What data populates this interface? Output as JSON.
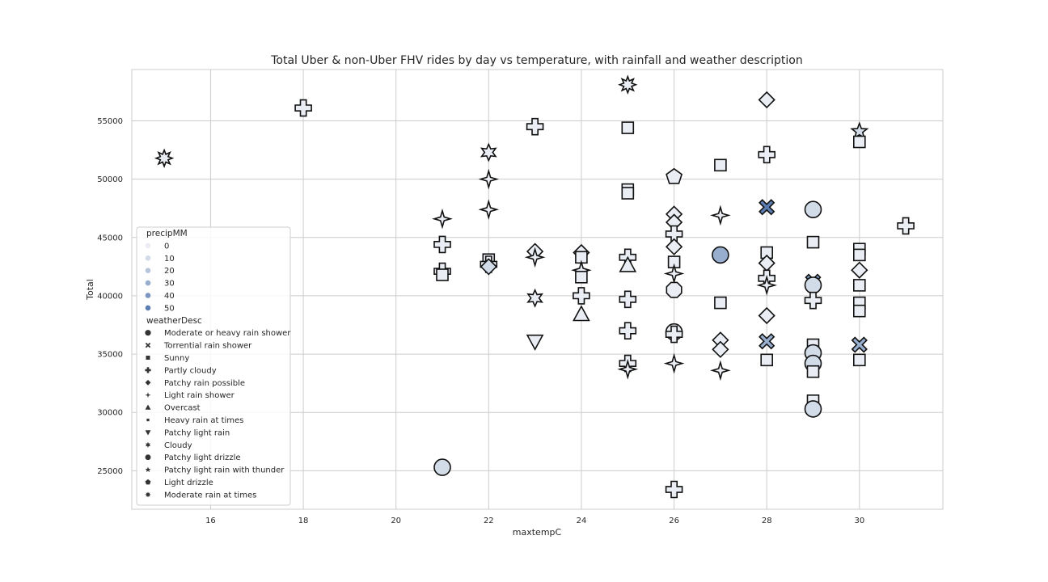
{
  "chart_data": {
    "type": "scatter",
    "title": "Total Uber & non-Uber FHV rides by day vs temperature, with rainfall and weather description",
    "xlabel": "maxtempC",
    "ylabel": "Total",
    "xlim": [
      14.3,
      31.8
    ],
    "ylim": [
      21700,
      59400
    ],
    "xticks": [
      16,
      18,
      20,
      22,
      24,
      26,
      28,
      30
    ],
    "yticks": [
      25000,
      30000,
      35000,
      40000,
      45000,
      50000,
      55000
    ],
    "grid": true,
    "legend_position": "lower-left",
    "hue_title": "precipMM",
    "hue_levels": [
      {
        "label": "0",
        "color": "#eaeef4"
      },
      {
        "label": "10",
        "color": "#d2dbe8"
      },
      {
        "label": "20",
        "color": "#b6c4dc"
      },
      {
        "label": "30",
        "color": "#98aecf"
      },
      {
        "label": "40",
        "color": "#7a96c1"
      },
      {
        "label": "50",
        "color": "#5b7db2"
      }
    ],
    "style_title": "weatherDesc",
    "styles": [
      {
        "label": "Moderate or heavy rain shower",
        "marker": "circle"
      },
      {
        "label": "Torrential rain shower",
        "marker": "x"
      },
      {
        "label": "Sunny",
        "marker": "square"
      },
      {
        "label": "Partly cloudy",
        "marker": "plus"
      },
      {
        "label": "Patchy rain possible",
        "marker": "diamond"
      },
      {
        "label": "Light rain shower",
        "marker": "star4"
      },
      {
        "label": "Overcast",
        "marker": "triangle-up"
      },
      {
        "label": "Heavy rain at times",
        "marker": "square-small"
      },
      {
        "label": "Patchy light rain",
        "marker": "triangle-down"
      },
      {
        "label": "Cloudy",
        "marker": "star6"
      },
      {
        "label": "Patchy light drizzle",
        "marker": "octagon"
      },
      {
        "label": "Patchy light rain with thunder",
        "marker": "star5"
      },
      {
        "label": "Light drizzle",
        "marker": "pentagon"
      },
      {
        "label": "Moderate rain at times",
        "marker": "star8"
      }
    ],
    "points": [
      {
        "x": 15,
        "y": 51800,
        "style": "Moderate rain at times",
        "precip": 0
      },
      {
        "x": 18,
        "y": 56100,
        "style": "Partly cloudy",
        "precip": 0
      },
      {
        "x": 21,
        "y": 46600,
        "style": "Light rain shower",
        "precip": 0
      },
      {
        "x": 21,
        "y": 44400,
        "style": "Partly cloudy",
        "precip": 0
      },
      {
        "x": 21,
        "y": 42100,
        "style": "Partly cloudy",
        "precip": 0
      },
      {
        "x": 21,
        "y": 41800,
        "style": "Sunny",
        "precip": 0
      },
      {
        "x": 21,
        "y": 25300,
        "style": "Moderate or heavy rain shower",
        "precip": 10
      },
      {
        "x": 22,
        "y": 52300,
        "style": "Cloudy",
        "precip": 0
      },
      {
        "x": 22,
        "y": 50000,
        "style": "Light rain shower",
        "precip": 0
      },
      {
        "x": 22,
        "y": 47400,
        "style": "Light rain shower",
        "precip": 0
      },
      {
        "x": 22,
        "y": 43100,
        "style": "Sunny",
        "precip": 0
      },
      {
        "x": 22,
        "y": 42700,
        "style": "Partly cloudy",
        "precip": 0
      },
      {
        "x": 22,
        "y": 42500,
        "style": "Patchy rain possible",
        "precip": 10
      },
      {
        "x": 23,
        "y": 54500,
        "style": "Partly cloudy",
        "precip": 0
      },
      {
        "x": 23,
        "y": 43800,
        "style": "Patchy rain possible",
        "precip": 0
      },
      {
        "x": 23,
        "y": 43300,
        "style": "Light rain shower",
        "precip": 0
      },
      {
        "x": 23,
        "y": 39800,
        "style": "Cloudy",
        "precip": 0
      },
      {
        "x": 23,
        "y": 36100,
        "style": "Patchy light rain",
        "precip": 0
      },
      {
        "x": 24,
        "y": 43700,
        "style": "Patchy rain possible",
        "precip": 0
      },
      {
        "x": 24,
        "y": 43300,
        "style": "Sunny",
        "precip": 0
      },
      {
        "x": 24,
        "y": 42200,
        "style": "Light rain shower",
        "precip": 0
      },
      {
        "x": 24,
        "y": 41600,
        "style": "Sunny",
        "precip": 0
      },
      {
        "x": 24,
        "y": 40000,
        "style": "Partly cloudy",
        "precip": 0
      },
      {
        "x": 24,
        "y": 38400,
        "style": "Overcast",
        "precip": 0
      },
      {
        "x": 25,
        "y": 58100,
        "style": "Moderate rain at times",
        "precip": 0
      },
      {
        "x": 25,
        "y": 54400,
        "style": "Sunny",
        "precip": 0
      },
      {
        "x": 25,
        "y": 49100,
        "style": "Sunny",
        "precip": 0
      },
      {
        "x": 25,
        "y": 48800,
        "style": "Sunny",
        "precip": 0
      },
      {
        "x": 25,
        "y": 43300,
        "style": "Partly cloudy",
        "precip": 0
      },
      {
        "x": 25,
        "y": 42600,
        "style": "Overcast",
        "precip": 0
      },
      {
        "x": 25,
        "y": 39700,
        "style": "Partly cloudy",
        "precip": 0
      },
      {
        "x": 25,
        "y": 37000,
        "style": "Partly cloudy",
        "precip": 0
      },
      {
        "x": 25,
        "y": 34200,
        "style": "Partly cloudy",
        "precip": 0
      },
      {
        "x": 25,
        "y": 33700,
        "style": "Light rain shower",
        "precip": 0
      },
      {
        "x": 26,
        "y": 50200,
        "style": "Light drizzle",
        "precip": 0
      },
      {
        "x": 26,
        "y": 47000,
        "style": "Patchy rain possible",
        "precip": 0
      },
      {
        "x": 26,
        "y": 46300,
        "style": "Patchy rain possible",
        "precip": 0
      },
      {
        "x": 26,
        "y": 45300,
        "style": "Partly cloudy",
        "precip": 0
      },
      {
        "x": 26,
        "y": 44200,
        "style": "Patchy rain possible",
        "precip": 0
      },
      {
        "x": 26,
        "y": 42900,
        "style": "Sunny",
        "precip": 0
      },
      {
        "x": 26,
        "y": 41900,
        "style": "Light rain shower",
        "precip": 0
      },
      {
        "x": 26,
        "y": 40500,
        "style": "Patchy light drizzle",
        "precip": 0
      },
      {
        "x": 26,
        "y": 36900,
        "style": "Moderate or heavy rain shower",
        "precip": 0
      },
      {
        "x": 26,
        "y": 36700,
        "style": "Partly cloudy",
        "precip": 0
      },
      {
        "x": 26,
        "y": 34200,
        "style": "Light rain shower",
        "precip": 0
      },
      {
        "x": 26,
        "y": 23400,
        "style": "Partly cloudy",
        "precip": 0
      },
      {
        "x": 27,
        "y": 51200,
        "style": "Sunny",
        "precip": 0
      },
      {
        "x": 27,
        "y": 46900,
        "style": "Light rain shower",
        "precip": 0
      },
      {
        "x": 27,
        "y": 43500,
        "style": "Moderate or heavy rain shower",
        "precip": 30
      },
      {
        "x": 27,
        "y": 39400,
        "style": "Sunny",
        "precip": 0
      },
      {
        "x": 27,
        "y": 36200,
        "style": "Patchy rain possible",
        "precip": 0
      },
      {
        "x": 27,
        "y": 35400,
        "style": "Patchy rain possible",
        "precip": 0
      },
      {
        "x": 27,
        "y": 33600,
        "style": "Light rain shower",
        "precip": 0
      },
      {
        "x": 28,
        "y": 56800,
        "style": "Patchy rain possible",
        "precip": 0
      },
      {
        "x": 28,
        "y": 52100,
        "style": "Partly cloudy",
        "precip": 0
      },
      {
        "x": 28,
        "y": 47600,
        "style": "Torrential rain shower",
        "precip": 50
      },
      {
        "x": 28,
        "y": 43700,
        "style": "Sunny",
        "precip": 0
      },
      {
        "x": 28,
        "y": 42800,
        "style": "Patchy rain possible",
        "precip": 0
      },
      {
        "x": 28,
        "y": 41500,
        "style": "Partly cloudy",
        "precip": 0
      },
      {
        "x": 28,
        "y": 40900,
        "style": "Light rain shower",
        "precip": 0
      },
      {
        "x": 28,
        "y": 38300,
        "style": "Patchy rain possible",
        "precip": 0
      },
      {
        "x": 28,
        "y": 36100,
        "style": "Torrential rain shower",
        "precip": 30
      },
      {
        "x": 28,
        "y": 34500,
        "style": "Sunny",
        "precip": 0
      },
      {
        "x": 29,
        "y": 47400,
        "style": "Moderate or heavy rain shower",
        "precip": 10
      },
      {
        "x": 29,
        "y": 44600,
        "style": "Sunny",
        "precip": 0
      },
      {
        "x": 29,
        "y": 41200,
        "style": "Torrential rain shower",
        "precip": 40
      },
      {
        "x": 29,
        "y": 40900,
        "style": "Moderate or heavy rain shower",
        "precip": 10
      },
      {
        "x": 29,
        "y": 39600,
        "style": "Partly cloudy",
        "precip": 0
      },
      {
        "x": 29,
        "y": 35800,
        "style": "Sunny",
        "precip": 0
      },
      {
        "x": 29,
        "y": 35100,
        "style": "Moderate or heavy rain shower",
        "precip": 10
      },
      {
        "x": 29,
        "y": 34200,
        "style": "Moderate or heavy rain shower",
        "precip": 10
      },
      {
        "x": 29,
        "y": 33500,
        "style": "Sunny",
        "precip": 0
      },
      {
        "x": 29,
        "y": 31000,
        "style": "Sunny",
        "precip": 0
      },
      {
        "x": 29,
        "y": 30300,
        "style": "Moderate or heavy rain shower",
        "precip": 10
      },
      {
        "x": 30,
        "y": 54100,
        "style": "Patchy light rain with thunder",
        "precip": 10
      },
      {
        "x": 30,
        "y": 53200,
        "style": "Sunny",
        "precip": 0
      },
      {
        "x": 30,
        "y": 44000,
        "style": "Sunny",
        "precip": 0
      },
      {
        "x": 30,
        "y": 43500,
        "style": "Sunny",
        "precip": 0
      },
      {
        "x": 30,
        "y": 42200,
        "style": "Patchy rain possible",
        "precip": 0
      },
      {
        "x": 30,
        "y": 40900,
        "style": "Sunny",
        "precip": 0
      },
      {
        "x": 30,
        "y": 39400,
        "style": "Sunny",
        "precip": 0
      },
      {
        "x": 30,
        "y": 38700,
        "style": "Sunny",
        "precip": 0
      },
      {
        "x": 30,
        "y": 35800,
        "style": "Torrential rain shower",
        "precip": 30
      },
      {
        "x": 30,
        "y": 34500,
        "style": "Sunny",
        "precip": 0
      },
      {
        "x": 31,
        "y": 46000,
        "style": "Partly cloudy",
        "precip": 0
      }
    ]
  }
}
